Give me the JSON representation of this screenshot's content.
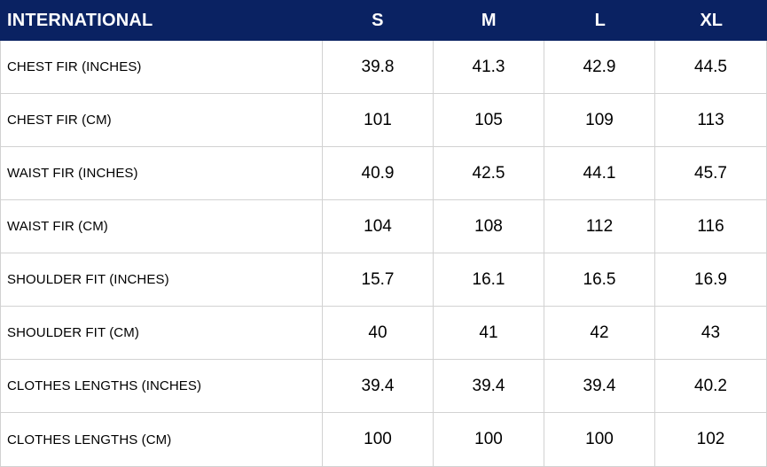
{
  "table": {
    "header": {
      "label": "INTERNATIONAL",
      "columns": [
        "S",
        "M",
        "L",
        "XL"
      ]
    },
    "rows": [
      {
        "label": "CHEST FIR (INCHES)",
        "values": [
          "39.8",
          "41.3",
          "42.9",
          "44.5"
        ]
      },
      {
        "label": "CHEST FIR (CM)",
        "values": [
          "101",
          "105",
          "109",
          "113"
        ]
      },
      {
        "label": "WAIST FIR (INCHES)",
        "values": [
          "40.9",
          "42.5",
          "44.1",
          "45.7"
        ]
      },
      {
        "label": "WAIST FIR (CM)",
        "values": [
          "104",
          "108",
          "112",
          "116"
        ]
      },
      {
        "label": "SHOULDER FIT (INCHES)",
        "values": [
          "15.7",
          "16.1",
          "16.5",
          "16.9"
        ]
      },
      {
        "label": "SHOULDER FIT (CM)",
        "values": [
          "40",
          "41",
          "42",
          "43"
        ]
      },
      {
        "label": "CLOTHES LENGTHS (INCHES)",
        "values": [
          "39.4",
          "39.4",
          "39.4",
          "40.2"
        ]
      },
      {
        "label": "CLOTHES LENGTHS (CM)",
        "values": [
          "100",
          "100",
          "100",
          "102"
        ]
      }
    ]
  },
  "colors": {
    "header_bg": "#0a2262",
    "header_text": "#ffffff",
    "grid_line": "#d2d2d2",
    "body_text": "#000000",
    "body_bg": "#ffffff"
  },
  "chart_data": {
    "type": "table",
    "title": "INTERNATIONAL",
    "categories": [
      "S",
      "M",
      "L",
      "XL"
    ],
    "series": [
      {
        "name": "CHEST FIR (INCHES)",
        "values": [
          39.8,
          41.3,
          42.9,
          44.5
        ]
      },
      {
        "name": "CHEST FIR (CM)",
        "values": [
          101,
          105,
          109,
          113
        ]
      },
      {
        "name": "WAIST FIR (INCHES)",
        "values": [
          40.9,
          42.5,
          44.1,
          45.7
        ]
      },
      {
        "name": "WAIST FIR (CM)",
        "values": [
          104,
          108,
          112,
          116
        ]
      },
      {
        "name": "SHOULDER FIT (INCHES)",
        "values": [
          15.7,
          16.1,
          16.5,
          16.9
        ]
      },
      {
        "name": "SHOULDER FIT (CM)",
        "values": [
          40,
          41,
          42,
          43
        ]
      },
      {
        "name": "CLOTHES LENGTHS (INCHES)",
        "values": [
          39.4,
          39.4,
          39.4,
          40.2
        ]
      },
      {
        "name": "CLOTHES LENGTHS (CM)",
        "values": [
          100,
          100,
          100,
          102
        ]
      }
    ]
  }
}
